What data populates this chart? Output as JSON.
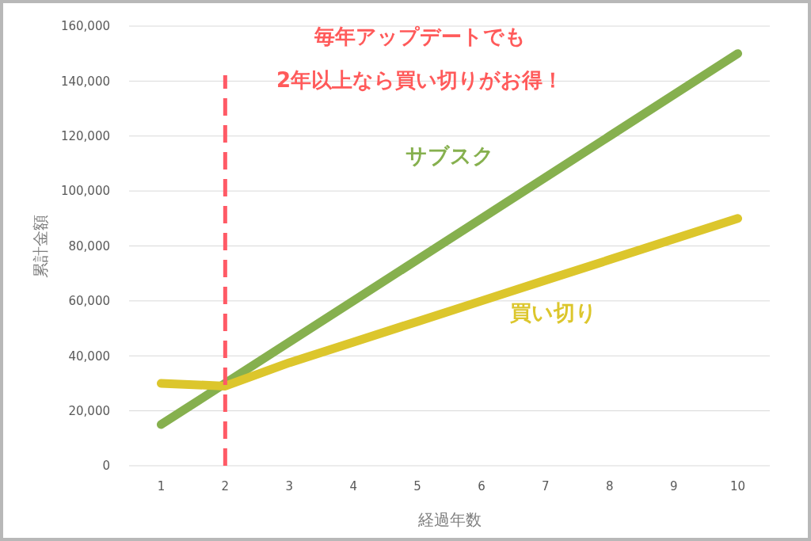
{
  "chart_data": {
    "type": "line",
    "xlabel": "経過年数",
    "ylabel": "累計金額",
    "annotations": [
      "毎年アップデートでも",
      "2年以上なら買い切りがお得！"
    ],
    "x": [
      1,
      2,
      3,
      4,
      5,
      6,
      7,
      8,
      9,
      10
    ],
    "xlim": [
      0.5,
      10.5
    ],
    "xticks": [
      1,
      2,
      3,
      4,
      5,
      6,
      7,
      8,
      9,
      10
    ],
    "ylim": [
      0,
      160000
    ],
    "yticks": [
      {
        "value": 0,
        "label": "0"
      },
      {
        "value": 20000,
        "label": "20,000"
      },
      {
        "value": 40000,
        "label": "40,000"
      },
      {
        "value": 60000,
        "label": "60,000"
      },
      {
        "value": 80000,
        "label": "80,000"
      },
      {
        "value": 100000,
        "label": "100,000"
      },
      {
        "value": 120000,
        "label": "120,000"
      },
      {
        "value": 140000,
        "label": "140,000"
      },
      {
        "value": 160000,
        "label": "160,000"
      }
    ],
    "series": [
      {
        "name": "サブスク",
        "color": "#86b04e",
        "values": [
          15000,
          30000,
          45000,
          60000,
          75000,
          90000,
          105000,
          120000,
          135000,
          150000
        ]
      },
      {
        "name": "買い切り",
        "color": "#dcc62c",
        "values": [
          30000,
          29000,
          37500,
          45000,
          52500,
          60000,
          67500,
          75000,
          82500,
          90000
        ]
      }
    ],
    "ref_lines": [
      {
        "axis": "x",
        "value": 2,
        "color": "#ff5a66",
        "line_style": "dashed"
      }
    ],
    "grid": "y",
    "marker": "none",
    "line_style": "solid"
  }
}
